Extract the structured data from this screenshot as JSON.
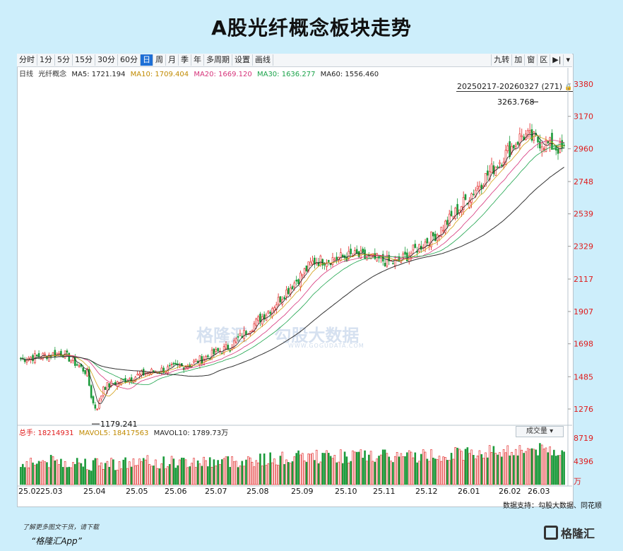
{
  "title": "A股光纤概念板块走势",
  "toolbar": {
    "left": [
      "分时",
      "1分",
      "5分",
      "15分",
      "30分",
      "60分",
      "日",
      "周",
      "月",
      "季",
      "年",
      "多周期",
      "设置",
      "画线"
    ],
    "active": "日",
    "right": [
      "九转",
      "加",
      "窗",
      "区",
      "▶|",
      "▾"
    ]
  },
  "ma_info": {
    "period": "日线",
    "name": "光纤概念",
    "ma5": "MA5: 1721.194",
    "ma10": "MA10: 1709.404",
    "ma20": "MA20: 1669.120",
    "ma30": "MA30: 1636.277",
    "ma60": "MA60: 1556.460"
  },
  "range_label": "20250217-20260327 (271)",
  "lock_icon": "lock-icon",
  "volume_info": {
    "total": "总手: 18214931",
    "mavol5": "MAVOL5: 18417563",
    "mavol10": "MAVOL10: 1789.73",
    "unit": "万"
  },
  "volume_button": "成交量",
  "source": "数据支持：勾股大数据、同花顺",
  "footer": {
    "line1": "了解更多图文干货，请下载",
    "line2": "“格隆汇App”",
    "logo": "格隆汇"
  },
  "watermark": {
    "left": "格隆汇",
    "right": "勾股大数据",
    "sub": "WWW.GOGUDATA.COM"
  },
  "colors": {
    "up": "#e01b1b",
    "down": "#1a9a3a",
    "ma5": "#222222",
    "ma10": "#d4a017",
    "ma20": "#d6337a",
    "ma30": "#1aa34a",
    "ma60": "#333333",
    "accent": "#1d6fd6"
  },
  "chart_data": {
    "type": "candlestick",
    "y_ticks": [
      1276,
      1485,
      1698,
      1907,
      2117,
      2329,
      2539,
      2748,
      2960,
      3170,
      3380
    ],
    "vol_ticks": [
      "8719",
      "4396",
      "万"
    ],
    "x_ticks": [
      "25.02",
      "25.03",
      "25.04",
      "25.05",
      "25.06",
      "25.07",
      "25.08",
      "25.09",
      "25.10",
      "25.11",
      "25.12",
      "26.01",
      "26.02",
      "26.03"
    ],
    "ylim": [
      1180,
      3420
    ],
    "annotations": {
      "high": "3263.768",
      "low": "1179.241"
    },
    "monthly_close": {
      "months": [
        "25.02",
        "25.03",
        "25.04",
        "25.05",
        "25.06",
        "25.07",
        "25.08",
        "25.09",
        "25.10",
        "25.11",
        "25.12",
        "26.01",
        "26.02",
        "26.03"
      ],
      "values": [
        1600,
        1640,
        1420,
        1510,
        1560,
        1680,
        1930,
        2230,
        2270,
        2220,
        2420,
        2740,
        3050,
        2950
      ]
    }
  }
}
